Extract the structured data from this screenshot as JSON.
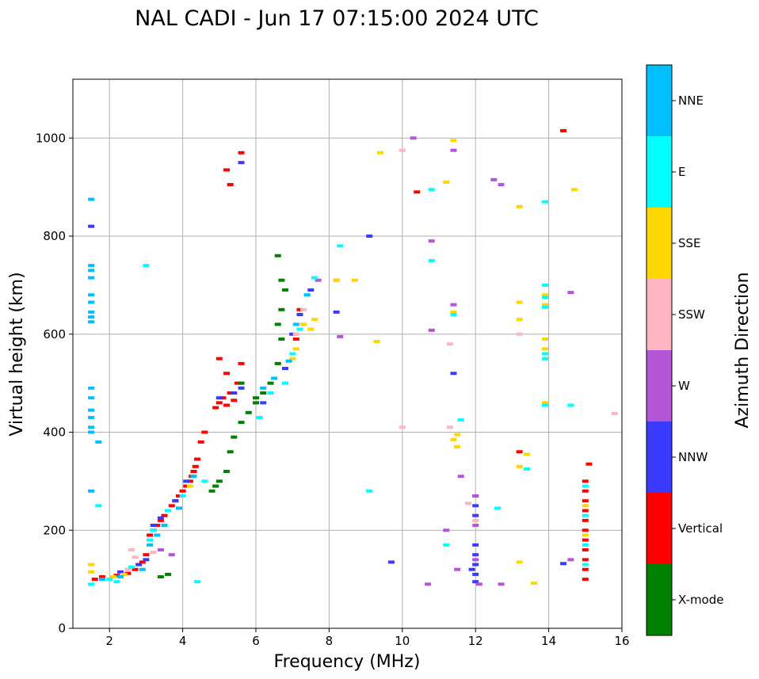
{
  "chart_data": {
    "type": "scatter",
    "title": "NAL CADI - Jun 17 07:15:00 2024 UTC",
    "xlabel": "Frequency (MHz)",
    "ylabel": "Virtual height (km)",
    "xlim": [
      1,
      16
    ],
    "ylim": [
      0,
      1120
    ],
    "xticks": [
      2,
      4,
      6,
      8,
      10,
      12,
      14,
      16
    ],
    "yticks": [
      0,
      200,
      400,
      600,
      800,
      1000
    ],
    "grid": true,
    "colorbar": {
      "label": "Azimuth Direction",
      "categories": [
        {
          "name": "X-mode",
          "color": "#008000"
        },
        {
          "name": "Vertical",
          "color": "#ff0000"
        },
        {
          "name": "NNW",
          "color": "#3a3aff"
        },
        {
          "name": "W",
          "color": "#b455d8"
        },
        {
          "name": "SSW",
          "color": "#ffb6c1"
        },
        {
          "name": "SSE",
          "color": "#ffd700"
        },
        {
          "name": "E",
          "color": "#00ffff"
        },
        {
          "name": "NNE",
          "color": "#00bfff"
        }
      ]
    },
    "series": [
      {
        "name": "Vertical",
        "points": [
          [
            1.6,
            100
          ],
          [
            1.8,
            105
          ],
          [
            2.2,
            108
          ],
          [
            2.5,
            112
          ],
          [
            2.7,
            120
          ],
          [
            2.9,
            135
          ],
          [
            3.0,
            150
          ],
          [
            3.1,
            190
          ],
          [
            3.2,
            200
          ],
          [
            3.3,
            210
          ],
          [
            3.4,
            220
          ],
          [
            3.5,
            230
          ],
          [
            3.6,
            240
          ],
          [
            3.7,
            250
          ],
          [
            3.8,
            260
          ],
          [
            3.9,
            270
          ],
          [
            4.0,
            280
          ],
          [
            4.1,
            290
          ],
          [
            4.2,
            300
          ],
          [
            4.25,
            310
          ],
          [
            4.3,
            320
          ],
          [
            4.35,
            330
          ],
          [
            4.4,
            345
          ],
          [
            4.5,
            380
          ],
          [
            4.6,
            400
          ],
          [
            4.9,
            450
          ],
          [
            5.0,
            460
          ],
          [
            5.1,
            470
          ],
          [
            5.2,
            455
          ],
          [
            5.3,
            480
          ],
          [
            5.4,
            465
          ],
          [
            5.5,
            500
          ],
          [
            5.0,
            550
          ],
          [
            5.2,
            520
          ],
          [
            5.6,
            540
          ],
          [
            7.2,
            650
          ],
          [
            7.1,
            590
          ],
          [
            5.2,
            935
          ],
          [
            5.6,
            970
          ],
          [
            5.3,
            905
          ],
          [
            10.4,
            890
          ],
          [
            14.4,
            1015
          ],
          [
            13.2,
            360
          ],
          [
            15.1,
            335
          ],
          [
            15.0,
            300
          ],
          [
            15.0,
            280
          ],
          [
            15.0,
            260
          ],
          [
            15.0,
            240
          ],
          [
            15.0,
            220
          ],
          [
            15.0,
            200
          ],
          [
            15.0,
            180
          ],
          [
            15.0,
            160
          ],
          [
            15.0,
            140
          ],
          [
            15.0,
            120
          ],
          [
            15.0,
            100
          ]
        ]
      },
      {
        "name": "X-mode",
        "points": [
          [
            3.6,
            110
          ],
          [
            3.4,
            105
          ],
          [
            4.8,
            280
          ],
          [
            4.9,
            290
          ],
          [
            5.0,
            300
          ],
          [
            5.2,
            320
          ],
          [
            5.3,
            360
          ],
          [
            5.4,
            390
          ],
          [
            5.6,
            420
          ],
          [
            5.8,
            440
          ],
          [
            6.0,
            460
          ],
          [
            6.2,
            480
          ],
          [
            6.4,
            500
          ],
          [
            6.6,
            540
          ],
          [
            6.7,
            590
          ],
          [
            6.6,
            620
          ],
          [
            6.7,
            650
          ],
          [
            6.8,
            690
          ],
          [
            6.7,
            710
          ],
          [
            6.6,
            760
          ],
          [
            5.6,
            500
          ],
          [
            6.0,
            470
          ]
        ]
      },
      {
        "name": "NNW",
        "points": [
          [
            1.5,
            820
          ],
          [
            2.3,
            115
          ],
          [
            2.8,
            130
          ],
          [
            3.0,
            140
          ],
          [
            3.2,
            210
          ],
          [
            3.4,
            225
          ],
          [
            3.8,
            260
          ],
          [
            4.1,
            300
          ],
          [
            5.0,
            470
          ],
          [
            5.4,
            480
          ],
          [
            5.6,
            490
          ],
          [
            6.2,
            460
          ],
          [
            6.8,
            530
          ],
          [
            7.0,
            600
          ],
          [
            7.2,
            640
          ],
          [
            7.5,
            690
          ],
          [
            5.6,
            950
          ],
          [
            8.2,
            645
          ],
          [
            9.1,
            800
          ],
          [
            11.4,
            520
          ],
          [
            12.0,
            270
          ],
          [
            12.0,
            250
          ],
          [
            12.0,
            230
          ],
          [
            12.0,
            170
          ],
          [
            12.0,
            150
          ],
          [
            12.0,
            130
          ],
          [
            12.0,
            110
          ],
          [
            12.0,
            95
          ],
          [
            11.9,
            120
          ],
          [
            14.4,
            132
          ],
          [
            9.7,
            135
          ]
        ]
      },
      {
        "name": "W",
        "points": [
          [
            3.4,
            160
          ],
          [
            3.7,
            150
          ],
          [
            8.2,
            710
          ],
          [
            10.3,
            1000
          ],
          [
            10.8,
            790
          ],
          [
            11.4,
            660
          ],
          [
            12.0,
            270
          ],
          [
            12.0,
            210
          ],
          [
            12.0,
            140
          ],
          [
            12.5,
            915
          ],
          [
            12.7,
            905
          ],
          [
            11.2,
            200
          ],
          [
            11.6,
            310
          ],
          [
            11.5,
            120
          ],
          [
            12.1,
            90
          ],
          [
            12.7,
            90
          ],
          [
            10.7,
            90
          ],
          [
            14.6,
            685
          ],
          [
            14.6,
            140
          ],
          [
            11.4,
            975
          ],
          [
            8.3,
            595
          ],
          [
            10.8,
            608
          ],
          [
            7.7,
            710
          ]
        ]
      },
      {
        "name": "SSW",
        "points": [
          [
            2.5,
            120
          ],
          [
            2.7,
            145
          ],
          [
            2.6,
            160
          ],
          [
            3.2,
            155
          ],
          [
            7.3,
            650
          ],
          [
            7.1,
            600
          ],
          [
            11.3,
            580
          ],
          [
            11.3,
            410
          ],
          [
            11.8,
            255
          ],
          [
            10.0,
            410
          ],
          [
            13.2,
            600
          ],
          [
            15.8,
            438
          ],
          [
            12.0,
            220
          ],
          [
            10.0,
            975
          ]
        ]
      },
      {
        "name": "SSE",
        "points": [
          [
            1.5,
            130
          ],
          [
            1.5,
            115
          ],
          [
            2.1,
            105
          ],
          [
            2.4,
            110
          ],
          [
            4.2,
            290
          ],
          [
            7.0,
            550
          ],
          [
            7.1,
            570
          ],
          [
            7.3,
            620
          ],
          [
            7.5,
            610
          ],
          [
            7.6,
            630
          ],
          [
            8.2,
            710
          ],
          [
            8.7,
            710
          ],
          [
            9.4,
            970
          ],
          [
            9.3,
            585
          ],
          [
            11.2,
            910
          ],
          [
            11.4,
            385
          ],
          [
            11.5,
            395
          ],
          [
            11.5,
            370
          ],
          [
            11.4,
            645
          ],
          [
            13.2,
            860
          ],
          [
            13.2,
            665
          ],
          [
            13.2,
            630
          ],
          [
            13.2,
            330
          ],
          [
            13.4,
            355
          ],
          [
            13.2,
            135
          ],
          [
            13.6,
            92
          ],
          [
            13.9,
            700
          ],
          [
            13.9,
            680
          ],
          [
            13.9,
            660
          ],
          [
            13.9,
            590
          ],
          [
            13.9,
            570
          ],
          [
            13.9,
            460
          ],
          [
            14.7,
            895
          ],
          [
            11.4,
            995
          ],
          [
            15.0,
            250
          ],
          [
            15.0,
            190
          ]
        ]
      },
      {
        "name": "E",
        "points": [
          [
            1.5,
            90
          ],
          [
            2.0,
            100
          ],
          [
            2.2,
            95
          ],
          [
            2.6,
            125
          ],
          [
            3.0,
            740
          ],
          [
            3.1,
            180
          ],
          [
            3.2,
            200
          ],
          [
            3.6,
            240
          ],
          [
            4.0,
            270
          ],
          [
            4.6,
            300
          ],
          [
            6.1,
            430
          ],
          [
            6.4,
            480
          ],
          [
            6.8,
            500
          ],
          [
            7.0,
            560
          ],
          [
            7.2,
            610
          ],
          [
            7.4,
            680
          ],
          [
            7.6,
            715
          ],
          [
            8.3,
            780
          ],
          [
            9.1,
            280
          ],
          [
            10.8,
            895
          ],
          [
            10.8,
            750
          ],
          [
            11.4,
            640
          ],
          [
            11.2,
            170
          ],
          [
            11.6,
            425
          ],
          [
            12.6,
            245
          ],
          [
            13.4,
            325
          ],
          [
            13.9,
            870
          ],
          [
            13.9,
            700
          ],
          [
            13.9,
            675
          ],
          [
            13.9,
            655
          ],
          [
            13.9,
            560
          ],
          [
            13.9,
            550
          ],
          [
            13.9,
            455
          ],
          [
            14.6,
            455
          ],
          [
            4.4,
            95
          ],
          [
            1.7,
            250
          ],
          [
            15.0,
            290
          ],
          [
            15.0,
            230
          ],
          [
            15.0,
            170
          ],
          [
            15.0,
            130
          ]
        ]
      },
      {
        "name": "NNE",
        "points": [
          [
            1.5,
            875
          ],
          [
            1.5,
            740
          ],
          [
            1.5,
            730
          ],
          [
            1.5,
            715
          ],
          [
            1.5,
            680
          ],
          [
            1.5,
            665
          ],
          [
            1.5,
            645
          ],
          [
            1.5,
            635
          ],
          [
            1.5,
            625
          ],
          [
            1.5,
            490
          ],
          [
            1.5,
            470
          ],
          [
            1.5,
            445
          ],
          [
            1.5,
            430
          ],
          [
            1.5,
            410
          ],
          [
            1.5,
            400
          ],
          [
            1.7,
            380
          ],
          [
            1.5,
            280
          ],
          [
            1.8,
            100
          ],
          [
            2.3,
            105
          ],
          [
            2.9,
            120
          ],
          [
            3.1,
            170
          ],
          [
            3.3,
            190
          ],
          [
            3.5,
            210
          ],
          [
            3.9,
            245
          ],
          [
            4.3,
            310
          ],
          [
            6.2,
            490
          ],
          [
            6.5,
            510
          ],
          [
            6.9,
            545
          ],
          [
            7.1,
            620
          ],
          [
            7.4,
            680
          ]
        ]
      }
    ]
  }
}
